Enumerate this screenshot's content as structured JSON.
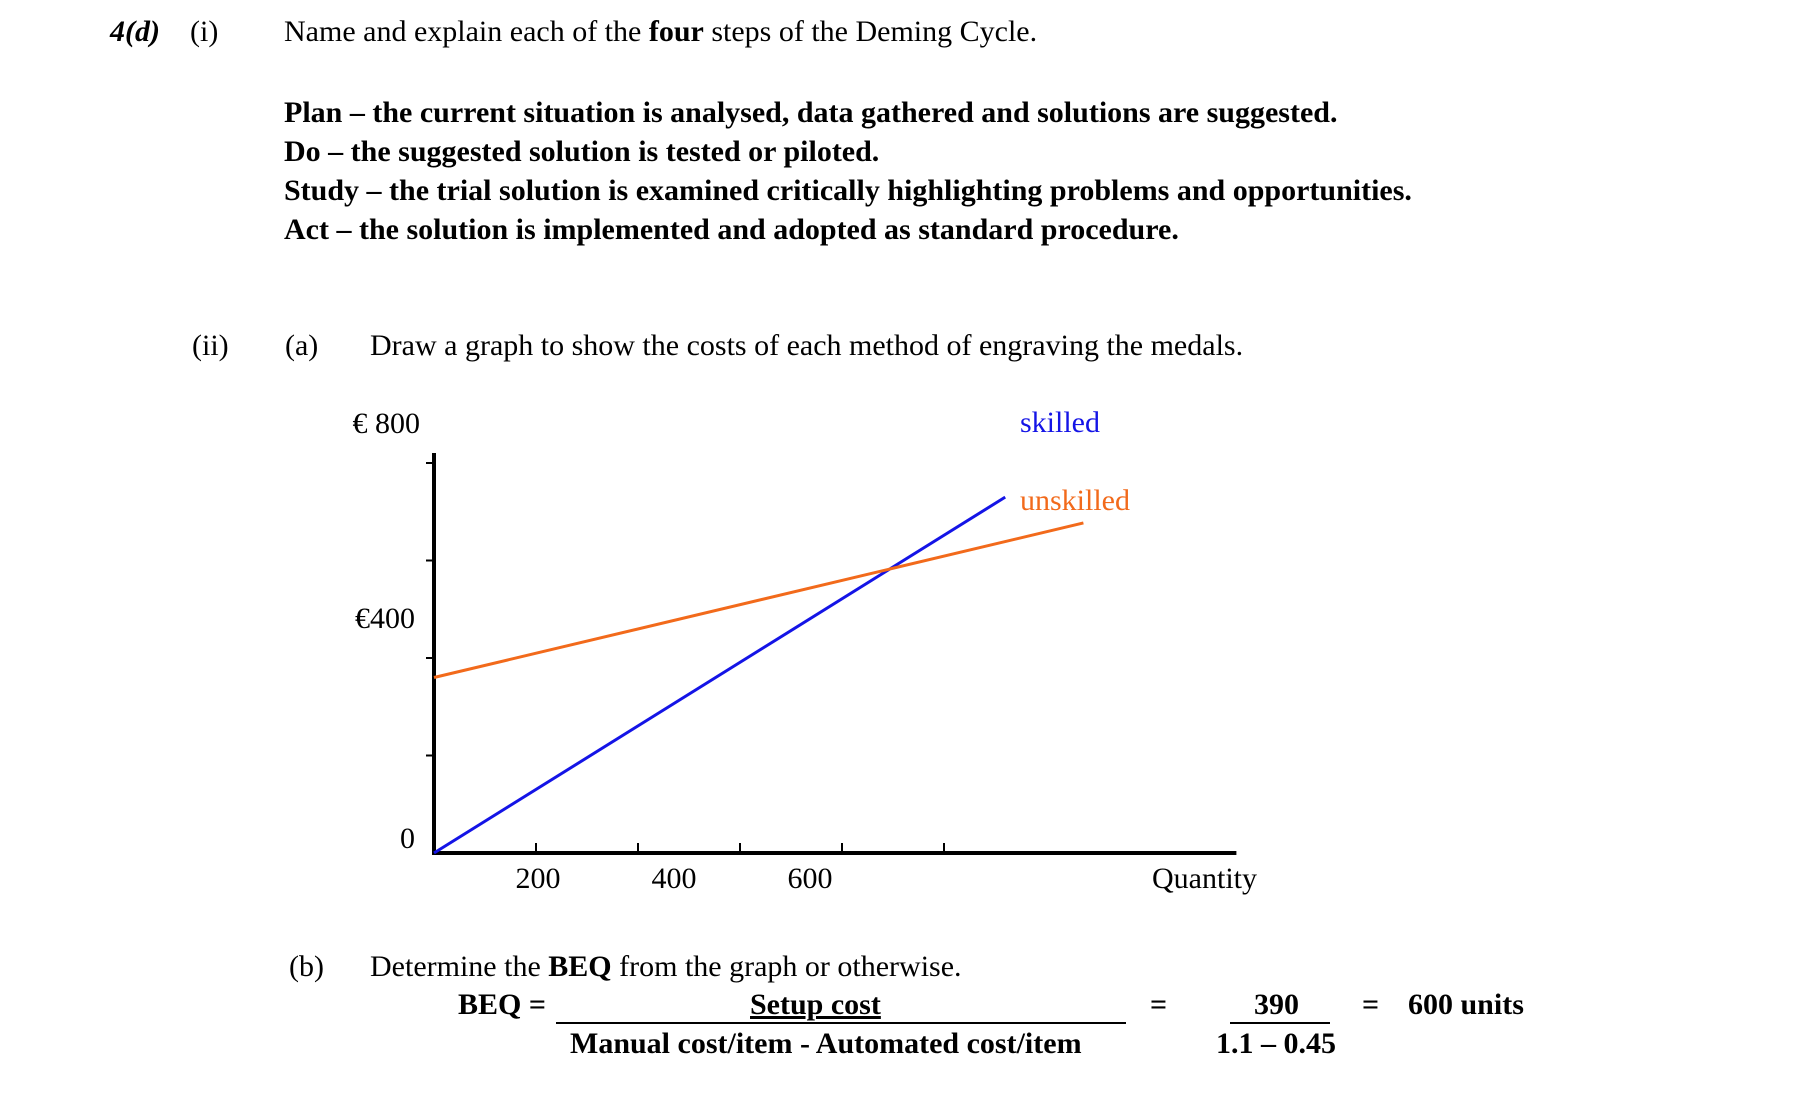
{
  "question": {
    "number": "4(d)",
    "part_i": "(i)",
    "prompt_pre": "Name and explain each of the ",
    "prompt_bold": "four",
    "prompt_post": " steps of the Deming Cycle."
  },
  "deming_answer": [
    {
      "term": "Plan",
      "text": " – the current situation is analysed, data gathered and solutions are suggested."
    },
    {
      "term": "Do",
      "text": " – the suggested solution is tested or piloted."
    },
    {
      "term": "Study",
      "text": " – the trial solution is examined critically highlighting problems and opportunities."
    },
    {
      "term": "Act",
      "text": " – the solution is implemented and adopted as standard procedure."
    }
  ],
  "part_ii": {
    "label": "(ii)",
    "a_label": "(a)",
    "a_prompt": "Draw a graph to show the costs of each method of engraving the medals.",
    "b_label": "(b)",
    "b_prompt_pre": "Determine the ",
    "b_prompt_bold": "BEQ",
    "b_prompt_post": " from the graph or otherwise."
  },
  "chart_data": {
    "type": "line",
    "title": "",
    "xlabel": "Quantity",
    "ylabel": "",
    "xlim": [
      0,
      1180
    ],
    "ylim": [
      0,
      800
    ],
    "x_ticks": [
      200,
      400,
      600
    ],
    "y_tick_labels": [
      "0",
      "€400",
      "€ 800"
    ],
    "series": [
      {
        "name": "skilled",
        "color": "#1414e6",
        "x": [
          0,
          840
        ],
        "y": [
          0,
          730
        ]
      },
      {
        "name": "unskilled",
        "color": "#f26a1b",
        "x": [
          0,
          955
        ],
        "y": [
          360,
          677
        ]
      }
    ]
  },
  "beq": {
    "label": "BEQ =",
    "numerator": "Setup cost",
    "denominator": "Manual cost/item - Automated cost/item",
    "eq1": "=",
    "num_value": "390",
    "den_value": "1.1 – 0.45",
    "eq2": "=",
    "result": "600 units"
  }
}
